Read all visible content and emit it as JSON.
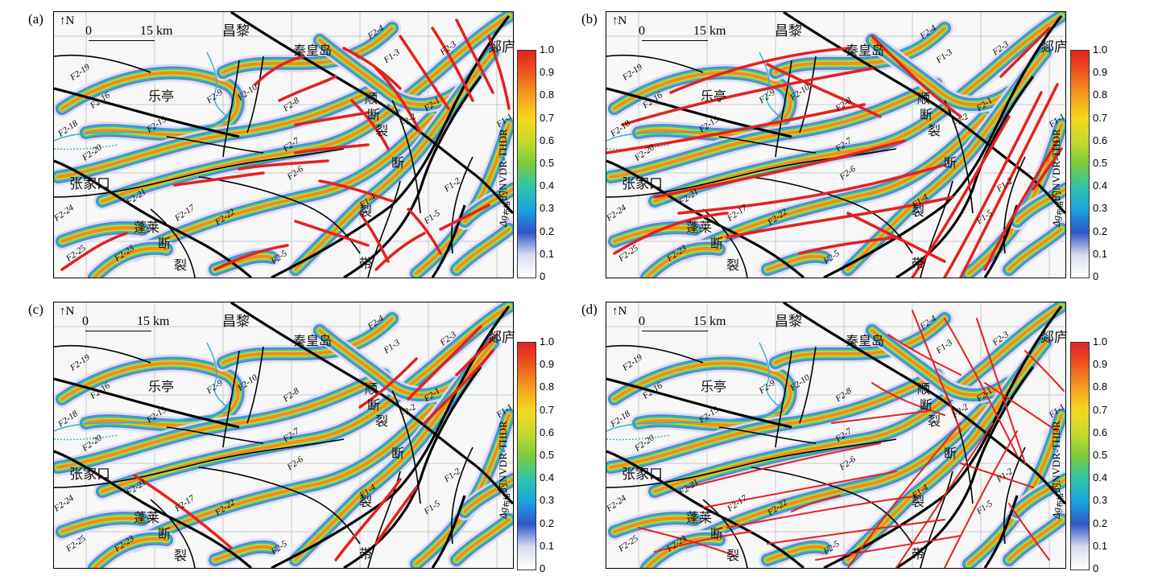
{
  "panels": [
    {
      "label": "(a)",
      "fault_set": "a"
    },
    {
      "label": "(b)",
      "fault_set": "b"
    },
    {
      "label": "(c)",
      "fault_set": "c"
    },
    {
      "label": "(d)",
      "fault_set": "d"
    }
  ],
  "north_arrow": {
    "letter": "N"
  },
  "scale_bar": {
    "start": "0",
    "end": "15 km"
  },
  "place_names": {
    "changli": "昌黎",
    "leting": "乐亭",
    "qinhuangdao": "秦皇岛",
    "tanglu": "郯庐",
    "shun": "顺",
    "duan1": "断",
    "lie1": "裂",
    "zhangjiakou": "张家口",
    "penglai": "蓬莱",
    "duan2": "断",
    "lie2": "裂",
    "dai": "带",
    "duan3": "断",
    "lie3": "裂"
  },
  "fault_labels": [
    "F2-19",
    "F2-16",
    "F2-15",
    "F2-18",
    "F2-20",
    "F2-24",
    "F2-25",
    "F2-23",
    "F2-17",
    "F2-21",
    "F2-22",
    "F2-9",
    "F2-10",
    "F2-8",
    "F2-7",
    "F2-6",
    "F2-5",
    "F2-4",
    "F2-3",
    "F2-2",
    "F2-1",
    "F1-1",
    "F1-2",
    "F1-3",
    "F1-4",
    "F1-5"
  ],
  "colorbar": {
    "label_main": "Δg",
    "label_sub": "布格",
    "label_rest": "的NVDR-THDR",
    "ticks": [
      "1.0",
      "0.9",
      "0.8",
      "0.7",
      "0.6",
      "0.5",
      "0.4",
      "0.3",
      "0.2",
      "0.1",
      "0"
    ],
    "range": [
      0,
      1.0
    ],
    "colors": [
      "#ffffff",
      "#d8dcf0",
      "#2f54c8",
      "#1aa4e0",
      "#2fc4a8",
      "#7acc3c",
      "#c8d82c",
      "#f4d81c",
      "#f4a020",
      "#ec5a1c",
      "#e42020"
    ]
  },
  "colors": {
    "fault_red": "#e62020",
    "line_black": "#000000",
    "coast_cyan": "#33b0d0"
  }
}
